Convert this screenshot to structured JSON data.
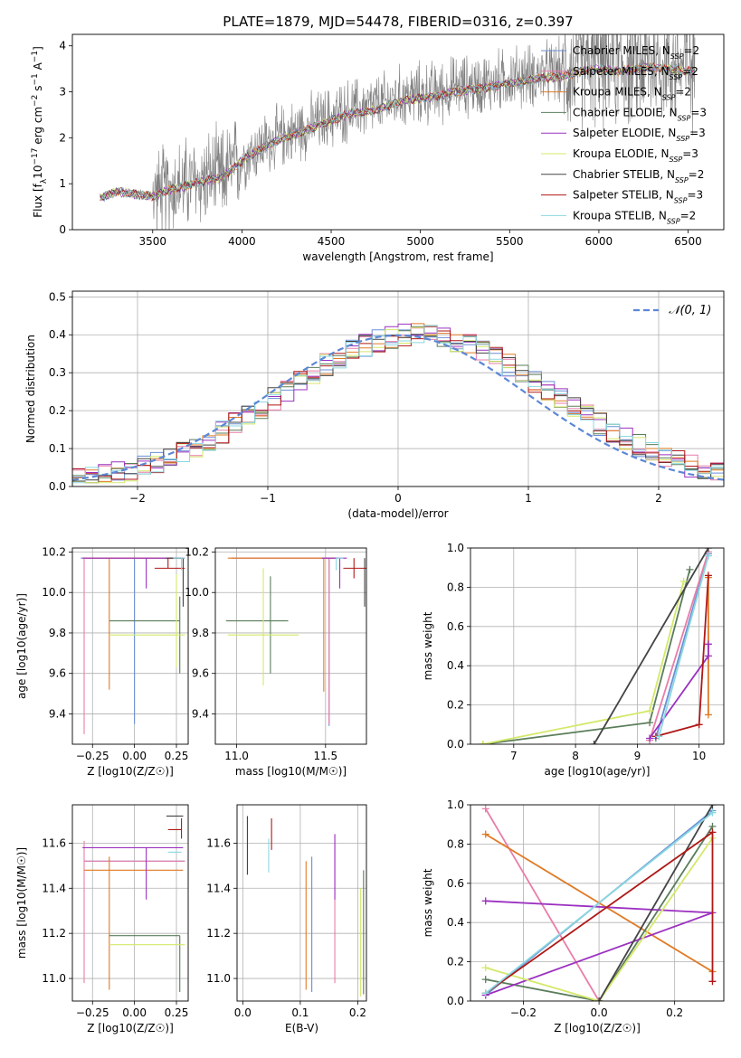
{
  "figure_title": "PLATE=1879, MJD=54478, FIBERID=0316, z=0.397",
  "colors": {
    "chabrier_miles": "#6b8fd6",
    "salpeter_miles": "#e87da8",
    "kroupa_miles": "#e07a25",
    "chabrier_elodie": "#5a7d5a",
    "salpeter_elodie": "#9b30c0",
    "kroupa_elodie": "#d4e86a",
    "chabrier_stelib": "#444444",
    "salpeter_stelib": "#b01818",
    "kroupa_stelib": "#8ad8e0",
    "data_spectrum": "#808080",
    "normal_curve": "#5b87d6"
  },
  "chart_data": [
    {
      "id": "spectrum",
      "type": "line",
      "title": "",
      "xlabel": "wavelength [Angstrom, rest frame]",
      "ylabel": "Flux [f_λ 10^-17 erg cm^-2 s^-1 A^-1]",
      "xlim": [
        3050,
        6700
      ],
      "ylim": [
        0,
        4.25
      ],
      "xticks": [
        3500,
        4000,
        4500,
        5000,
        5500,
        6000,
        6500
      ],
      "yticks": [
        0,
        1,
        2,
        3,
        4
      ],
      "legend_position": "top-right",
      "legend": [
        "Chabrier MILES, N_SSP=2",
        "Salpeter MILES, N_SSP=2",
        "Kroupa MILES, N_SSP=2",
        "Chabrier ELODIE, N_SSP=3",
        "Salpeter ELODIE, N_SSP=3",
        "Kroupa ELODIE, N_SSP=3",
        "Chabrier STELIB, N_SSP=2",
        "Salpeter STELIB, N_SSP=3",
        "Kroupa STELIB, N_SSP=2"
      ],
      "data_continuum": {
        "x": [
          3200,
          3300,
          3400,
          3500,
          3600,
          3700,
          3800,
          3900,
          4000,
          4100,
          4200,
          4300,
          4400,
          4500,
          4600,
          4700,
          4800,
          4900,
          5000,
          5100,
          5200,
          5300,
          5400,
          5500,
          5600,
          5700,
          5800,
          5900,
          6000,
          6100,
          6200,
          6300,
          6400,
          6500
        ],
        "y": [
          0.7,
          0.85,
          0.8,
          0.75,
          0.9,
          1.0,
          1.1,
          1.2,
          1.55,
          1.8,
          2.0,
          2.15,
          2.3,
          2.45,
          2.6,
          2.65,
          2.75,
          2.9,
          2.95,
          3.0,
          3.1,
          3.15,
          3.2,
          3.3,
          3.35,
          3.4,
          3.45,
          3.55,
          3.6,
          3.55,
          3.6,
          3.65,
          3.6,
          3.55
        ]
      }
    },
    {
      "id": "residuals",
      "type": "histogram",
      "xlabel": "(data-model)/error",
      "ylabel": "Normed distribution",
      "xlim": [
        -2.5,
        2.5
      ],
      "ylim": [
        0,
        0.515
      ],
      "xticks": [
        -2,
        -1,
        0,
        1,
        2
      ],
      "yticks": [
        0.0,
        0.1,
        0.2,
        0.3,
        0.4,
        0.5
      ],
      "legend_position": "top-right",
      "legend": [
        "𝒩(0, 1)"
      ],
      "bin_width": 0.1
    },
    {
      "id": "age_vs_Z",
      "type": "errorbar",
      "xlabel": "Z [log10(Z/Z☉)]",
      "ylabel": "age [log10(age/yr)]",
      "xlim": [
        -0.37,
        0.32
      ],
      "ylim": [
        9.25,
        10.22
      ],
      "xticks": [
        -0.25,
        0.0,
        0.25
      ],
      "yticks": [
        9.4,
        9.6,
        9.8,
        10.0,
        10.2
      ],
      "points": [
        {
          "model": "chabrier_miles",
          "x": 0.0,
          "xerr": [
            0.32,
            0.3
          ],
          "y": 10.17,
          "yerr": [
            0.82,
            0.0
          ]
        },
        {
          "model": "salpeter_miles",
          "x": -0.3,
          "xerr": [
            0.0,
            0.6
          ],
          "y": 10.17,
          "yerr": [
            0.87,
            0.0
          ]
        },
        {
          "model": "kroupa_miles",
          "x": -0.15,
          "xerr": [
            0.15,
            0.44
          ],
          "y": 10.17,
          "yerr": [
            0.65,
            0.0
          ]
        },
        {
          "model": "chabrier_elodie",
          "x": 0.27,
          "xerr": [
            0.42,
            0.0
          ],
          "y": 9.86,
          "yerr": [
            0.26,
            0.12
          ]
        },
        {
          "model": "salpeter_elodie",
          "x": 0.07,
          "xerr": [
            0.38,
            0.22
          ],
          "y": 10.17,
          "yerr": [
            0.15,
            0.0
          ]
        },
        {
          "model": "kroupa_elodie",
          "x": 0.25,
          "xerr": [
            0.4,
            0.05
          ],
          "y": 9.79,
          "yerr": [
            0.16,
            0.3
          ]
        },
        {
          "model": "chabrier_stelib",
          "x": 0.29,
          "xerr": [
            0.1,
            0.0
          ],
          "y": 10.17,
          "yerr": [
            0.24,
            0.0
          ]
        },
        {
          "model": "salpeter_stelib",
          "x": 0.2,
          "xerr": [
            0.08,
            0.1
          ],
          "y": 10.12,
          "yerr": [
            0.0,
            0.05
          ]
        },
        {
          "model": "kroupa_stelib",
          "x": 0.28,
          "xerr": [
            0.05,
            0.02
          ],
          "y": 10.17,
          "yerr": [
            0.06,
            0.0
          ]
        }
      ]
    },
    {
      "id": "age_vs_mass",
      "type": "errorbar",
      "xlabel": "mass [log10(M/M☉)]",
      "ylabel": "",
      "xlim": [
        10.88,
        11.73
      ],
      "ylim": [
        9.25,
        10.22
      ],
      "xticks": [
        11.0,
        11.5
      ],
      "yticks": [
        9.4,
        9.6,
        9.8,
        10.0,
        10.2
      ],
      "points": [
        {
          "model": "chabrier_miles",
          "x": 11.52,
          "xerr": [
            0.55,
            0.04
          ],
          "y": 10.17,
          "yerr": [
            0.83,
            0.0
          ]
        },
        {
          "model": "salpeter_miles",
          "x": 11.52,
          "xerr": [
            0.55,
            0.05
          ],
          "y": 10.17,
          "yerr": [
            0.82,
            0.0
          ]
        },
        {
          "model": "kroupa_miles",
          "x": 11.49,
          "xerr": [
            0.54,
            0.06
          ],
          "y": 10.17,
          "yerr": [
            0.66,
            0.0
          ]
        },
        {
          "model": "chabrier_elodie",
          "x": 11.19,
          "xerr": [
            0.25,
            0.1
          ],
          "y": 9.86,
          "yerr": [
            0.26,
            0.22
          ]
        },
        {
          "model": "salpeter_elodie",
          "x": 11.58,
          "xerr": [
            0.1,
            0.04
          ],
          "y": 10.17,
          "yerr": [
            0.15,
            0.0
          ]
        },
        {
          "model": "kroupa_elodie",
          "x": 11.15,
          "xerr": [
            0.2,
            0.2
          ],
          "y": 9.79,
          "yerr": [
            0.25,
            0.33
          ]
        },
        {
          "model": "chabrier_stelib",
          "x": 11.72,
          "xerr": [
            0.0,
            0.0
          ],
          "y": 10.17,
          "yerr": [
            0.24,
            0.0
          ]
        },
        {
          "model": "salpeter_stelib",
          "x": 11.66,
          "xerr": [
            0.06,
            0.07
          ],
          "y": 10.12,
          "yerr": [
            0.05,
            0.05
          ]
        },
        {
          "model": "kroupa_stelib",
          "x": 11.56,
          "xerr": [
            0.0,
            0.04
          ],
          "y": 10.17,
          "yerr": [
            0.06,
            0.0
          ]
        }
      ]
    },
    {
      "id": "weight_vs_age",
      "type": "line",
      "xlabel": "age [log10(age/yr)]",
      "ylabel": "mass weight",
      "xlim": [
        6.3,
        10.4
      ],
      "ylim": [
        0.0,
        1.0
      ],
      "xticks": [
        7,
        8,
        9,
        10
      ],
      "yticks": [
        0.0,
        0.2,
        0.4,
        0.6,
        0.8,
        1.0
      ],
      "series": [
        {
          "model": "chabrier_miles",
          "x": [
            9.3,
            10.15
          ],
          "y": [
            0.03,
            0.97
          ]
        },
        {
          "model": "salpeter_miles",
          "x": [
            9.2,
            10.15
          ],
          "y": [
            0.02,
            0.98
          ]
        },
        {
          "model": "kroupa_miles",
          "x": [
            10.15,
            10.15
          ],
          "y": [
            0.15,
            0.85
          ]
        },
        {
          "model": "chabrier_elodie",
          "x": [
            6.5,
            9.2,
            9.85
          ],
          "y": [
            0.0,
            0.11,
            0.89
          ]
        },
        {
          "model": "salpeter_elodie",
          "x": [
            9.2,
            10.15,
            10.15
          ],
          "y": [
            0.03,
            0.45,
            0.51
          ]
        },
        {
          "model": "kroupa_elodie",
          "x": [
            6.5,
            9.2,
            9.75
          ],
          "y": [
            0.0,
            0.17,
            0.83
          ]
        },
        {
          "model": "chabrier_stelib",
          "x": [
            8.3,
            10.15
          ],
          "y": [
            0.0,
            1.0
          ]
        },
        {
          "model": "salpeter_stelib",
          "x": [
            9.3,
            10.0,
            10.15
          ],
          "y": [
            0.04,
            0.1,
            0.86
          ]
        },
        {
          "model": "kroupa_stelib",
          "x": [
            9.35,
            10.15
          ],
          "y": [
            0.04,
            0.96
          ]
        }
      ]
    },
    {
      "id": "mass_vs_Z",
      "type": "errorbar",
      "xlabel": "Z [log10(Z/Z☉)]",
      "ylabel": "mass [log10(M/M☉)]",
      "xlim": [
        -0.37,
        0.32
      ],
      "ylim": [
        10.9,
        11.77
      ],
      "xticks": [
        -0.25,
        0.0,
        0.25
      ],
      "yticks": [
        11.0,
        11.2,
        11.4,
        11.6
      ],
      "points": [
        {
          "model": "chabrier_miles",
          "x": 0.28,
          "xerr": [
            0.58,
            0.02
          ],
          "y": 11.52,
          "yerr": [
            0.0,
            0.0
          ]
        },
        {
          "model": "salpeter_miles",
          "x": -0.3,
          "xerr": [
            0.0,
            0.6
          ],
          "y": 11.52,
          "yerr": [
            0.54,
            0.09
          ]
        },
        {
          "model": "kroupa_miles",
          "x": -0.15,
          "xerr": [
            0.15,
            0.44
          ],
          "y": 11.48,
          "yerr": [
            0.53,
            0.06
          ]
        },
        {
          "model": "chabrier_elodie",
          "x": 0.27,
          "xerr": [
            0.42,
            0.0
          ],
          "y": 11.19,
          "yerr": [
            0.25,
            0.0
          ]
        },
        {
          "model": "salpeter_elodie",
          "x": 0.07,
          "xerr": [
            0.38,
            0.22
          ],
          "y": 11.58,
          "yerr": [
            0.23,
            0.0
          ]
        },
        {
          "model": "kroupa_elodie",
          "x": 0.25,
          "xerr": [
            0.4,
            0.05
          ],
          "y": 11.15,
          "yerr": [
            0.0,
            0.0
          ]
        },
        {
          "model": "chabrier_stelib",
          "x": 0.29,
          "xerr": [
            0.1,
            0.0
          ],
          "y": 11.72,
          "yerr": [
            0.0,
            0.0
          ]
        },
        {
          "model": "salpeter_stelib",
          "x": 0.28,
          "xerr": [
            0.08,
            0.0
          ],
          "y": 11.66,
          "yerr": [
            0.04,
            0.05
          ]
        },
        {
          "model": "kroupa_stelib",
          "x": 0.28,
          "xerr": [
            0.08,
            0.0
          ],
          "y": 11.56,
          "yerr": [
            0.0,
            0.0
          ]
        }
      ]
    },
    {
      "id": "mass_vs_ebv",
      "type": "errorbar",
      "xlabel": "E(B-V)",
      "ylabel": "",
      "xlim": [
        -0.01,
        0.215
      ],
      "ylim": [
        10.9,
        11.77
      ],
      "xticks": [
        0.0,
        0.1,
        0.2
      ],
      "yticks": [
        11.0,
        11.2,
        11.4,
        11.6
      ],
      "points": [
        {
          "model": "chabrier_miles",
          "x": 0.12,
          "y": 11.52,
          "yerr": [
            0.58,
            0.02
          ]
        },
        {
          "model": "salpeter_miles",
          "x": 0.16,
          "y": 11.52,
          "yerr": [
            0.54,
            0.12
          ]
        },
        {
          "model": "kroupa_miles",
          "x": 0.11,
          "y": 11.48,
          "yerr": [
            0.53,
            0.04
          ]
        },
        {
          "model": "chabrier_elodie",
          "x": 0.21,
          "y": 11.19,
          "yerr": [
            0.26,
            0.29
          ]
        },
        {
          "model": "salpeter_elodie",
          "x": 0.16,
          "y": 11.58,
          "yerr": [
            0.23,
            0.06
          ]
        },
        {
          "model": "kroupa_elodie",
          "x": 0.205,
          "y": 11.15,
          "yerr": [
            0.23,
            0.25
          ]
        },
        {
          "model": "chabrier_stelib",
          "x": 0.008,
          "y": 11.72,
          "yerr": [
            0.26,
            0.0
          ]
        },
        {
          "model": "salpeter_stelib",
          "x": 0.05,
          "y": 11.66,
          "yerr": [
            0.09,
            0.05
          ]
        },
        {
          "model": "kroupa_stelib",
          "x": 0.045,
          "y": 11.56,
          "yerr": [
            0.09,
            0.06
          ]
        }
      ]
    },
    {
      "id": "weight_vs_Z",
      "type": "line",
      "xlabel": "Z [log10(Z/Z☉)]",
      "ylabel": "mass weight",
      "xlim": [
        -0.34,
        0.33
      ],
      "ylim": [
        0.0,
        1.0
      ],
      "xticks": [
        -0.2,
        0.0,
        0.2
      ],
      "yticks": [
        0.0,
        0.2,
        0.4,
        0.6,
        0.8,
        1.0
      ],
      "series": [
        {
          "model": "chabrier_miles",
          "x": [
            -0.3,
            0.3
          ],
          "y": [
            0.03,
            0.97
          ]
        },
        {
          "model": "salpeter_miles",
          "x": [
            -0.3,
            0.0
          ],
          "y": [
            0.98,
            0.0
          ]
        },
        {
          "model": "kroupa_miles",
          "x": [
            -0.3,
            0.3
          ],
          "y": [
            0.85,
            0.15
          ]
        },
        {
          "model": "chabrier_elodie",
          "x": [
            -0.3,
            0.0,
            0.3
          ],
          "y": [
            0.11,
            0.0,
            0.89
          ]
        },
        {
          "model": "salpeter_elodie",
          "x": [
            -0.3,
            0.3,
            -0.3
          ],
          "y": [
            0.03,
            0.45,
            0.51
          ]
        },
        {
          "model": "kroupa_elodie",
          "x": [
            -0.3,
            0.0,
            0.3
          ],
          "y": [
            0.17,
            0.0,
            0.83
          ]
        },
        {
          "model": "chabrier_stelib",
          "x": [
            0.0,
            0.3
          ],
          "y": [
            0.0,
            1.0
          ]
        },
        {
          "model": "salpeter_stelib",
          "x": [
            -0.3,
            0.3,
            0.3
          ],
          "y": [
            0.04,
            0.86,
            0.1
          ]
        },
        {
          "model": "kroupa_stelib",
          "x": [
            -0.3,
            0.3
          ],
          "y": [
            0.04,
            0.96
          ]
        }
      ]
    }
  ]
}
